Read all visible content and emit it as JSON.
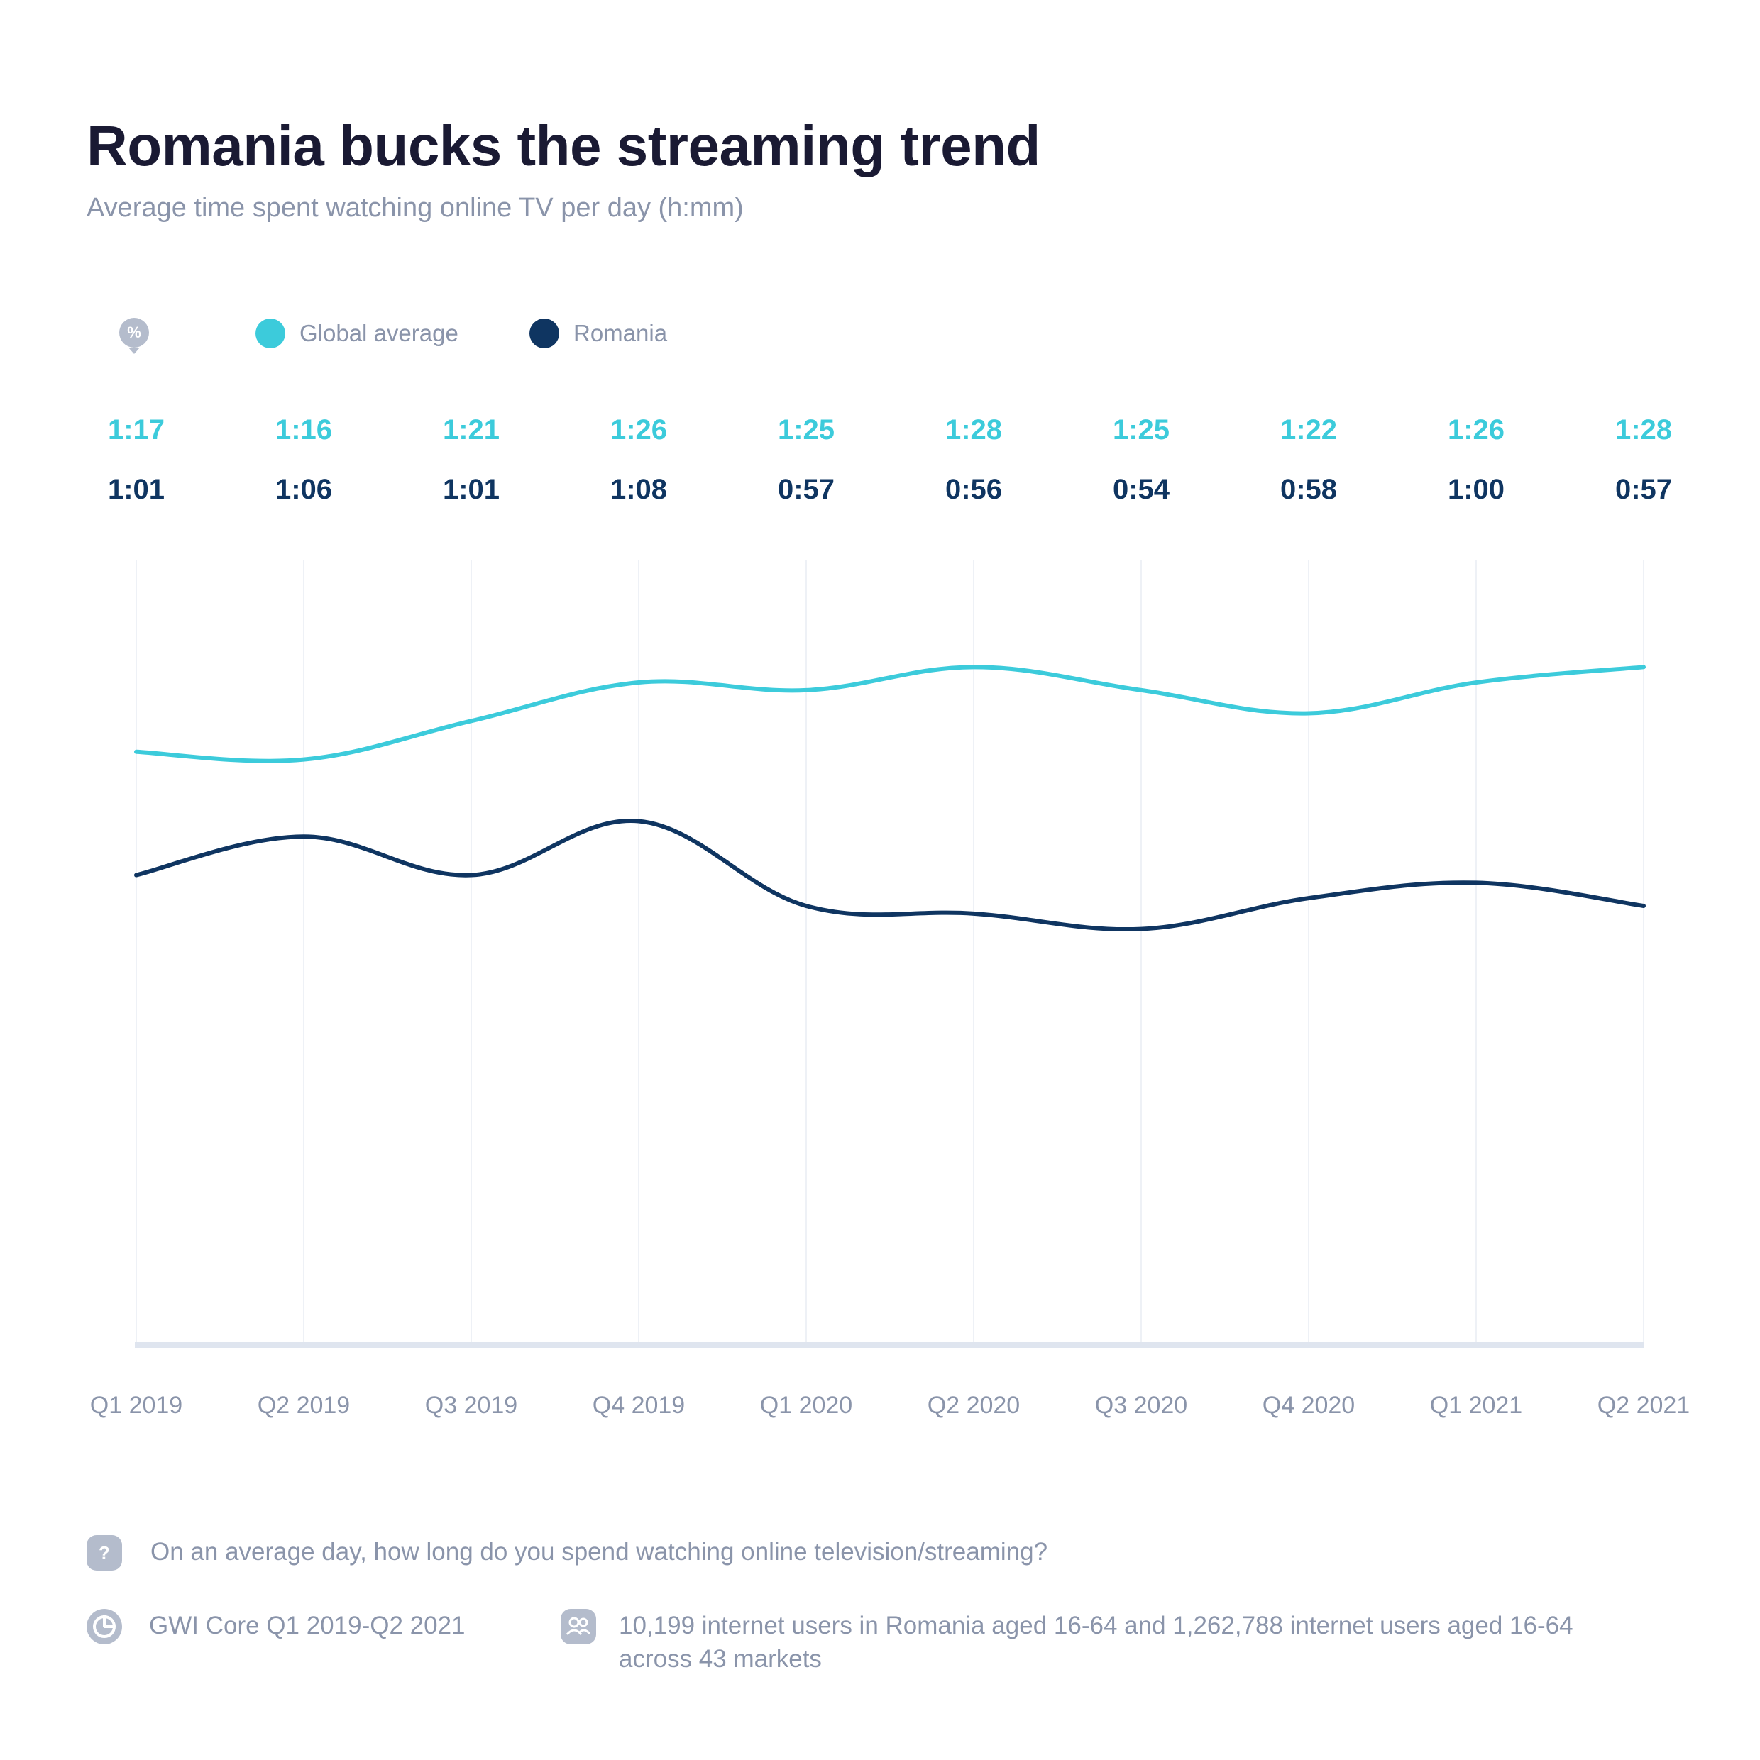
{
  "header": {
    "title": "Romania bucks the streaming trend",
    "subtitle": "Average time spent watching online TV per day (h:mm)"
  },
  "legend": {
    "percent_glyph": "%",
    "items": [
      {
        "label": "Global average",
        "color": "#3ccbdb"
      },
      {
        "label": "Romania",
        "color": "#0f3561"
      }
    ]
  },
  "chart_data": {
    "type": "line",
    "categories": [
      "Q1 2019",
      "Q2 2019",
      "Q3 2019",
      "Q4 2019",
      "Q1 2020",
      "Q2 2020",
      "Q3 2020",
      "Q4 2020",
      "Q1 2021",
      "Q2 2021"
    ],
    "series": [
      {
        "name": "Global average",
        "color": "#3ccbdb",
        "labels": [
          "1:17",
          "1:16",
          "1:21",
          "1:26",
          "1:25",
          "1:28",
          "1:25",
          "1:22",
          "1:26",
          "1:28"
        ],
        "values": [
          77,
          76,
          81,
          86,
          85,
          88,
          85,
          82,
          86,
          88
        ]
      },
      {
        "name": "Romania",
        "color": "#0f3561",
        "labels": [
          "1:01",
          "1:06",
          "1:01",
          "1:08",
          "0:57",
          "0:56",
          "0:54",
          "0:58",
          "1:00",
          "0:57"
        ],
        "values": [
          61,
          66,
          61,
          68,
          57,
          56,
          54,
          58,
          60,
          57
        ]
      }
    ],
    "ylim": [
      0,
      100
    ],
    "grid": true,
    "legend_position": "top-left"
  },
  "footer": {
    "question_icon": "?",
    "question": "On an average day, how long do you spend watching online television/streaming?",
    "source": "GWI Core Q1 2019-Q2 2021",
    "sample": "10,199 internet users in Romania aged 16-64 and 1,262,788 internet users aged 16-64 across 43 markets"
  }
}
